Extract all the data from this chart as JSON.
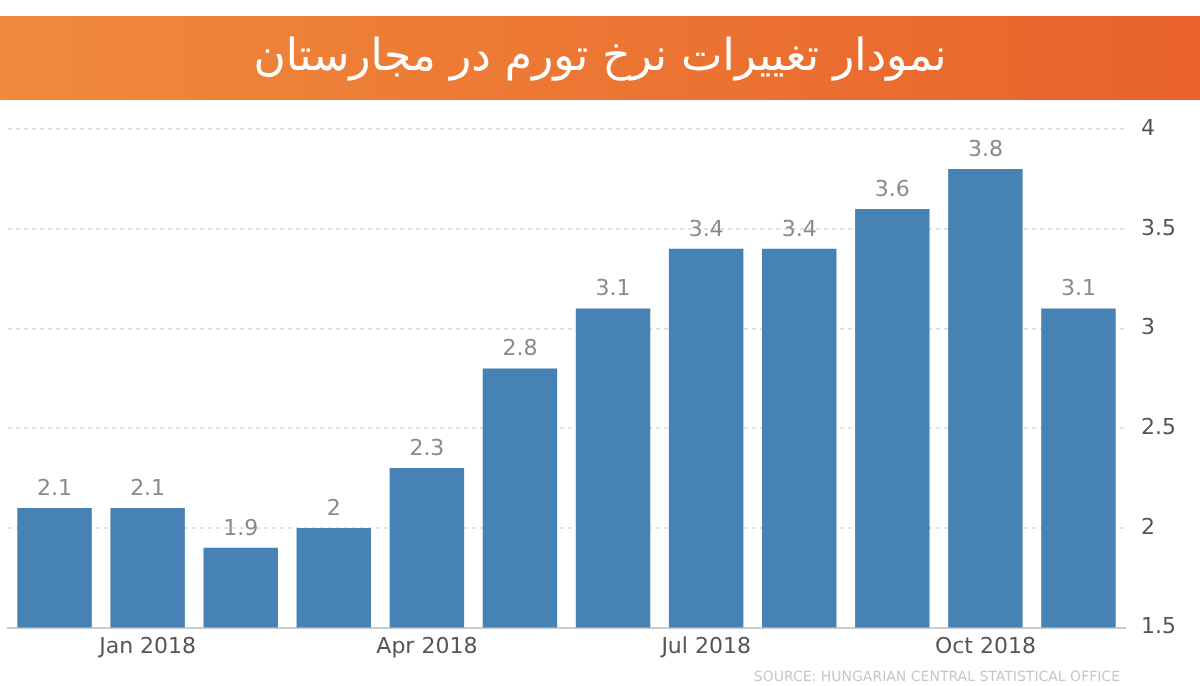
{
  "chart_data": {
    "type": "bar",
    "title": "نمودار تغییرات نرخ تورم در مجارستان",
    "categories": [
      null,
      "Jan 2018",
      null,
      null,
      "Apr 2018",
      null,
      null,
      "Jul 2018",
      null,
      null,
      "Oct 2018",
      null
    ],
    "values": [
      2.1,
      2.1,
      1.9,
      2,
      2.3,
      2.8,
      3.1,
      3.4,
      3.4,
      3.6,
      3.8,
      3.1
    ],
    "color": "#4682b4",
    "ylim": [
      1.5,
      4
    ],
    "yticks": [
      1.5,
      2,
      2.5,
      3,
      3.5,
      4
    ],
    "grid": "y",
    "data_labels": true,
    "annotations": [
      "SOURCE: HUNGARIAN CENTRAL STATISTICAL OFFICE"
    ]
  }
}
